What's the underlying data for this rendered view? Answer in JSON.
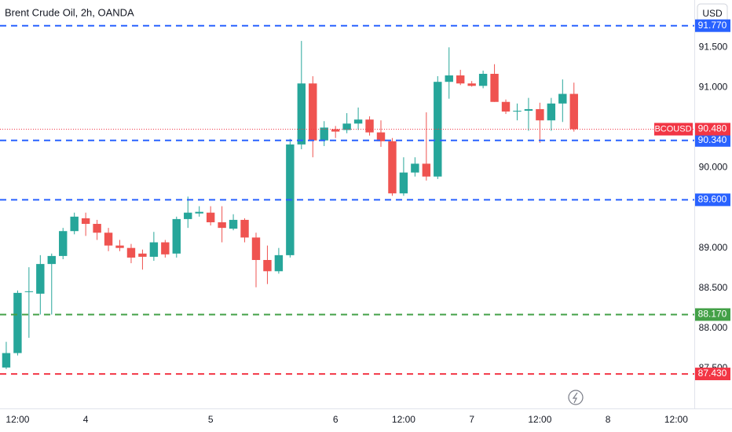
{
  "chart_data": {
    "type": "candlestick",
    "title": "Brent Crude Oil, 2h, OANDA",
    "currency": "USD",
    "up_color": "#26a69a",
    "down_color": "#ef5350",
    "open": [
      87.51,
      87.69,
      88.45,
      88.43,
      88.8,
      88.9,
      89.21,
      89.37,
      89.3,
      89.19,
      89.03,
      89.0,
      88.93,
      88.89,
      89.07,
      88.93,
      89.36,
      89.43,
      89.44,
      89.32,
      89.24,
      89.35,
      89.13,
      88.85,
      88.71,
      88.91,
      90.29,
      91.05,
      90.34,
      90.48,
      90.47,
      90.55,
      90.6,
      90.44,
      90.33,
      89.68,
      89.94,
      90.05,
      89.89,
      91.07,
      91.15,
      91.05,
      91.02,
      91.17,
      90.82,
      90.7,
      90.71,
      90.73,
      90.59,
      90.8,
      90.92
    ],
    "high": [
      87.83,
      88.47,
      88.76,
      88.91,
      88.93,
      89.25,
      89.44,
      89.44,
      89.35,
      89.25,
      89.1,
      89.05,
      88.98,
      89.2,
      89.1,
      89.39,
      89.64,
      89.52,
      89.52,
      89.52,
      89.42,
      89.37,
      89.19,
      89.03,
      89.0,
      90.36,
      91.58,
      91.14,
      90.58,
      90.52,
      90.68,
      90.75,
      90.64,
      90.59,
      90.37,
      90.13,
      90.13,
      90.69,
      91.14,
      91.5,
      91.22,
      91.08,
      91.21,
      91.29,
      90.85,
      90.8,
      90.87,
      90.81,
      90.87,
      91.1,
      91.06
    ],
    "low": [
      87.49,
      87.66,
      87.88,
      88.17,
      88.17,
      88.86,
      89.17,
      89.15,
      89.1,
      88.96,
      88.96,
      88.81,
      88.73,
      88.84,
      88.88,
      88.88,
      89.25,
      89.39,
      89.28,
      89.07,
      89.22,
      89.07,
      88.51,
      88.55,
      88.68,
      88.88,
      90.23,
      90.13,
      90.27,
      90.37,
      90.43,
      90.47,
      90.4,
      90.26,
      89.65,
      89.65,
      89.89,
      89.84,
      89.86,
      90.86,
      91.03,
      91.01,
      90.99,
      90.82,
      90.67,
      90.59,
      90.46,
      90.31,
      90.46,
      90.57,
      90.45
    ],
    "close": [
      87.69,
      88.44,
      88.46,
      88.8,
      88.9,
      89.21,
      89.39,
      89.3,
      89.19,
      89.03,
      89.0,
      88.88,
      88.89,
      89.07,
      88.92,
      89.36,
      89.44,
      89.45,
      89.32,
      89.25,
      89.35,
      89.13,
      88.85,
      88.71,
      88.91,
      90.29,
      91.05,
      90.34,
      90.5,
      90.45,
      90.55,
      90.6,
      90.44,
      90.33,
      89.68,
      89.94,
      90.05,
      89.89,
      91.07,
      91.15,
      91.05,
      91.02,
      91.17,
      90.82,
      90.7,
      90.71,
      90.73,
      90.59,
      90.8,
      90.92,
      90.48
    ],
    "xlim": [
      -0.55,
      60.6
    ],
    "xticks": [
      {
        "value": 1,
        "label": "12:00"
      },
      {
        "value": 7,
        "label": "4"
      },
      {
        "value": 18,
        "label": "5"
      },
      {
        "value": 29,
        "label": "6"
      },
      {
        "value": 35,
        "label": "12:00"
      },
      {
        "value": 41,
        "label": "7"
      },
      {
        "value": 47,
        "label": "12:00"
      },
      {
        "value": 53,
        "label": "8"
      },
      {
        "value": 59,
        "label": "12:00"
      }
    ],
    "ylim": [
      87.0,
      92.09
    ],
    "yticks": [
      {
        "value": 87.5,
        "label": "87.500"
      },
      {
        "value": 88,
        "label": "88.000"
      },
      {
        "value": 88.5,
        "label": "88.500"
      },
      {
        "value": 89,
        "label": "89.000"
      },
      {
        "value": 90,
        "label": "90.000"
      },
      {
        "value": 91,
        "label": "91.000"
      },
      {
        "value": 91.5,
        "label": "91.500"
      }
    ],
    "levels": [
      {
        "value": 91.77,
        "label": "91.770",
        "color": "#2962ff"
      },
      {
        "value": 90.34,
        "label": "90.340",
        "color": "#2962ff"
      },
      {
        "value": 89.6,
        "label": "89.600",
        "color": "#2962ff"
      },
      {
        "value": 88.17,
        "label": "88.170",
        "color": "#43a047"
      },
      {
        "value": 87.43,
        "label": "87.430",
        "color": "#f23645"
      }
    ],
    "last_price": {
      "value": 90.48,
      "label": "90.480",
      "symbol": "BCOUSD",
      "color": "#f23645"
    }
  }
}
